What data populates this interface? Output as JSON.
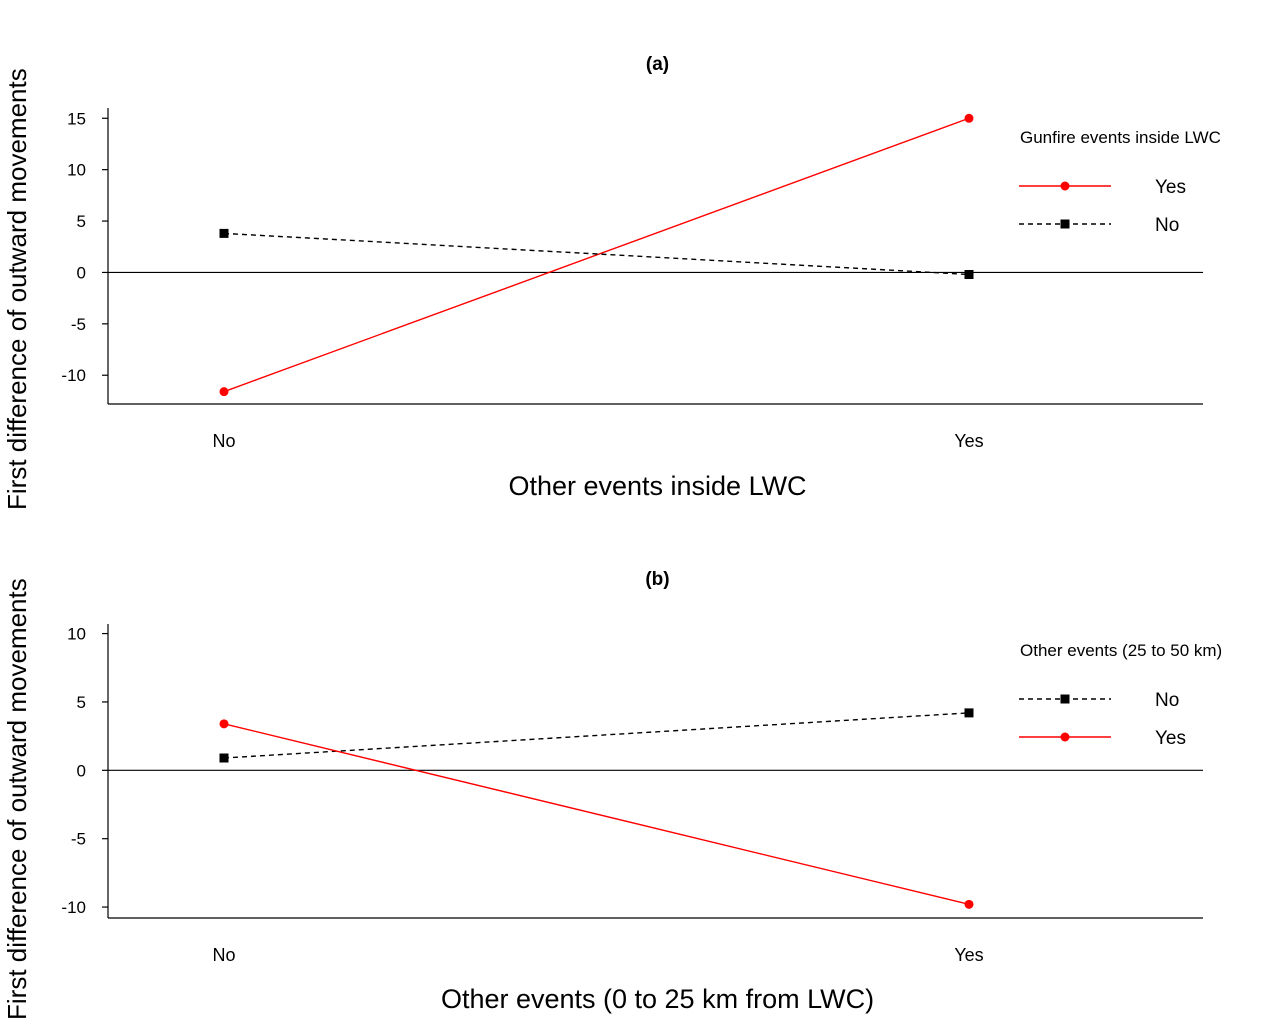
{
  "chart_data": [
    {
      "type": "line",
      "title": "(a)",
      "xlabel": "Other events inside LWC",
      "ylabel": "First difference of outward movements",
      "categories": [
        "No",
        "Yes"
      ],
      "ylim": [
        -12.8,
        16
      ],
      "yticks": [
        15,
        10,
        5,
        0,
        -5,
        -10
      ],
      "legend_title": "Gunfire events inside LWC",
      "legend_position": "top-right",
      "reference_line": 0,
      "grid": false,
      "series": [
        {
          "name": "Yes",
          "values": [
            -11.6,
            15.0
          ],
          "color": "#ff0000",
          "style": "solid",
          "marker": "circle"
        },
        {
          "name": "No",
          "values": [
            3.8,
            -0.2
          ],
          "color": "#000000",
          "style": "dashed",
          "marker": "square"
        }
      ]
    },
    {
      "type": "line",
      "title": "(b)",
      "xlabel": "Other events (0 to 25 km from LWC)",
      "ylabel": "First difference of outward movements",
      "categories": [
        "No",
        "Yes"
      ],
      "ylim": [
        -10.8,
        10.7
      ],
      "yticks": [
        10,
        5,
        0,
        -5,
        -10
      ],
      "legend_title": "Other events (25 to 50 km)",
      "legend_position": "top-right",
      "reference_line": 0,
      "grid": false,
      "series": [
        {
          "name": "No",
          "values": [
            0.9,
            4.2
          ],
          "color": "#000000",
          "style": "dashed",
          "marker": "square"
        },
        {
          "name": "Yes",
          "values": [
            3.4,
            -9.8
          ],
          "color": "#ff0000",
          "style": "solid",
          "marker": "circle"
        }
      ]
    }
  ]
}
